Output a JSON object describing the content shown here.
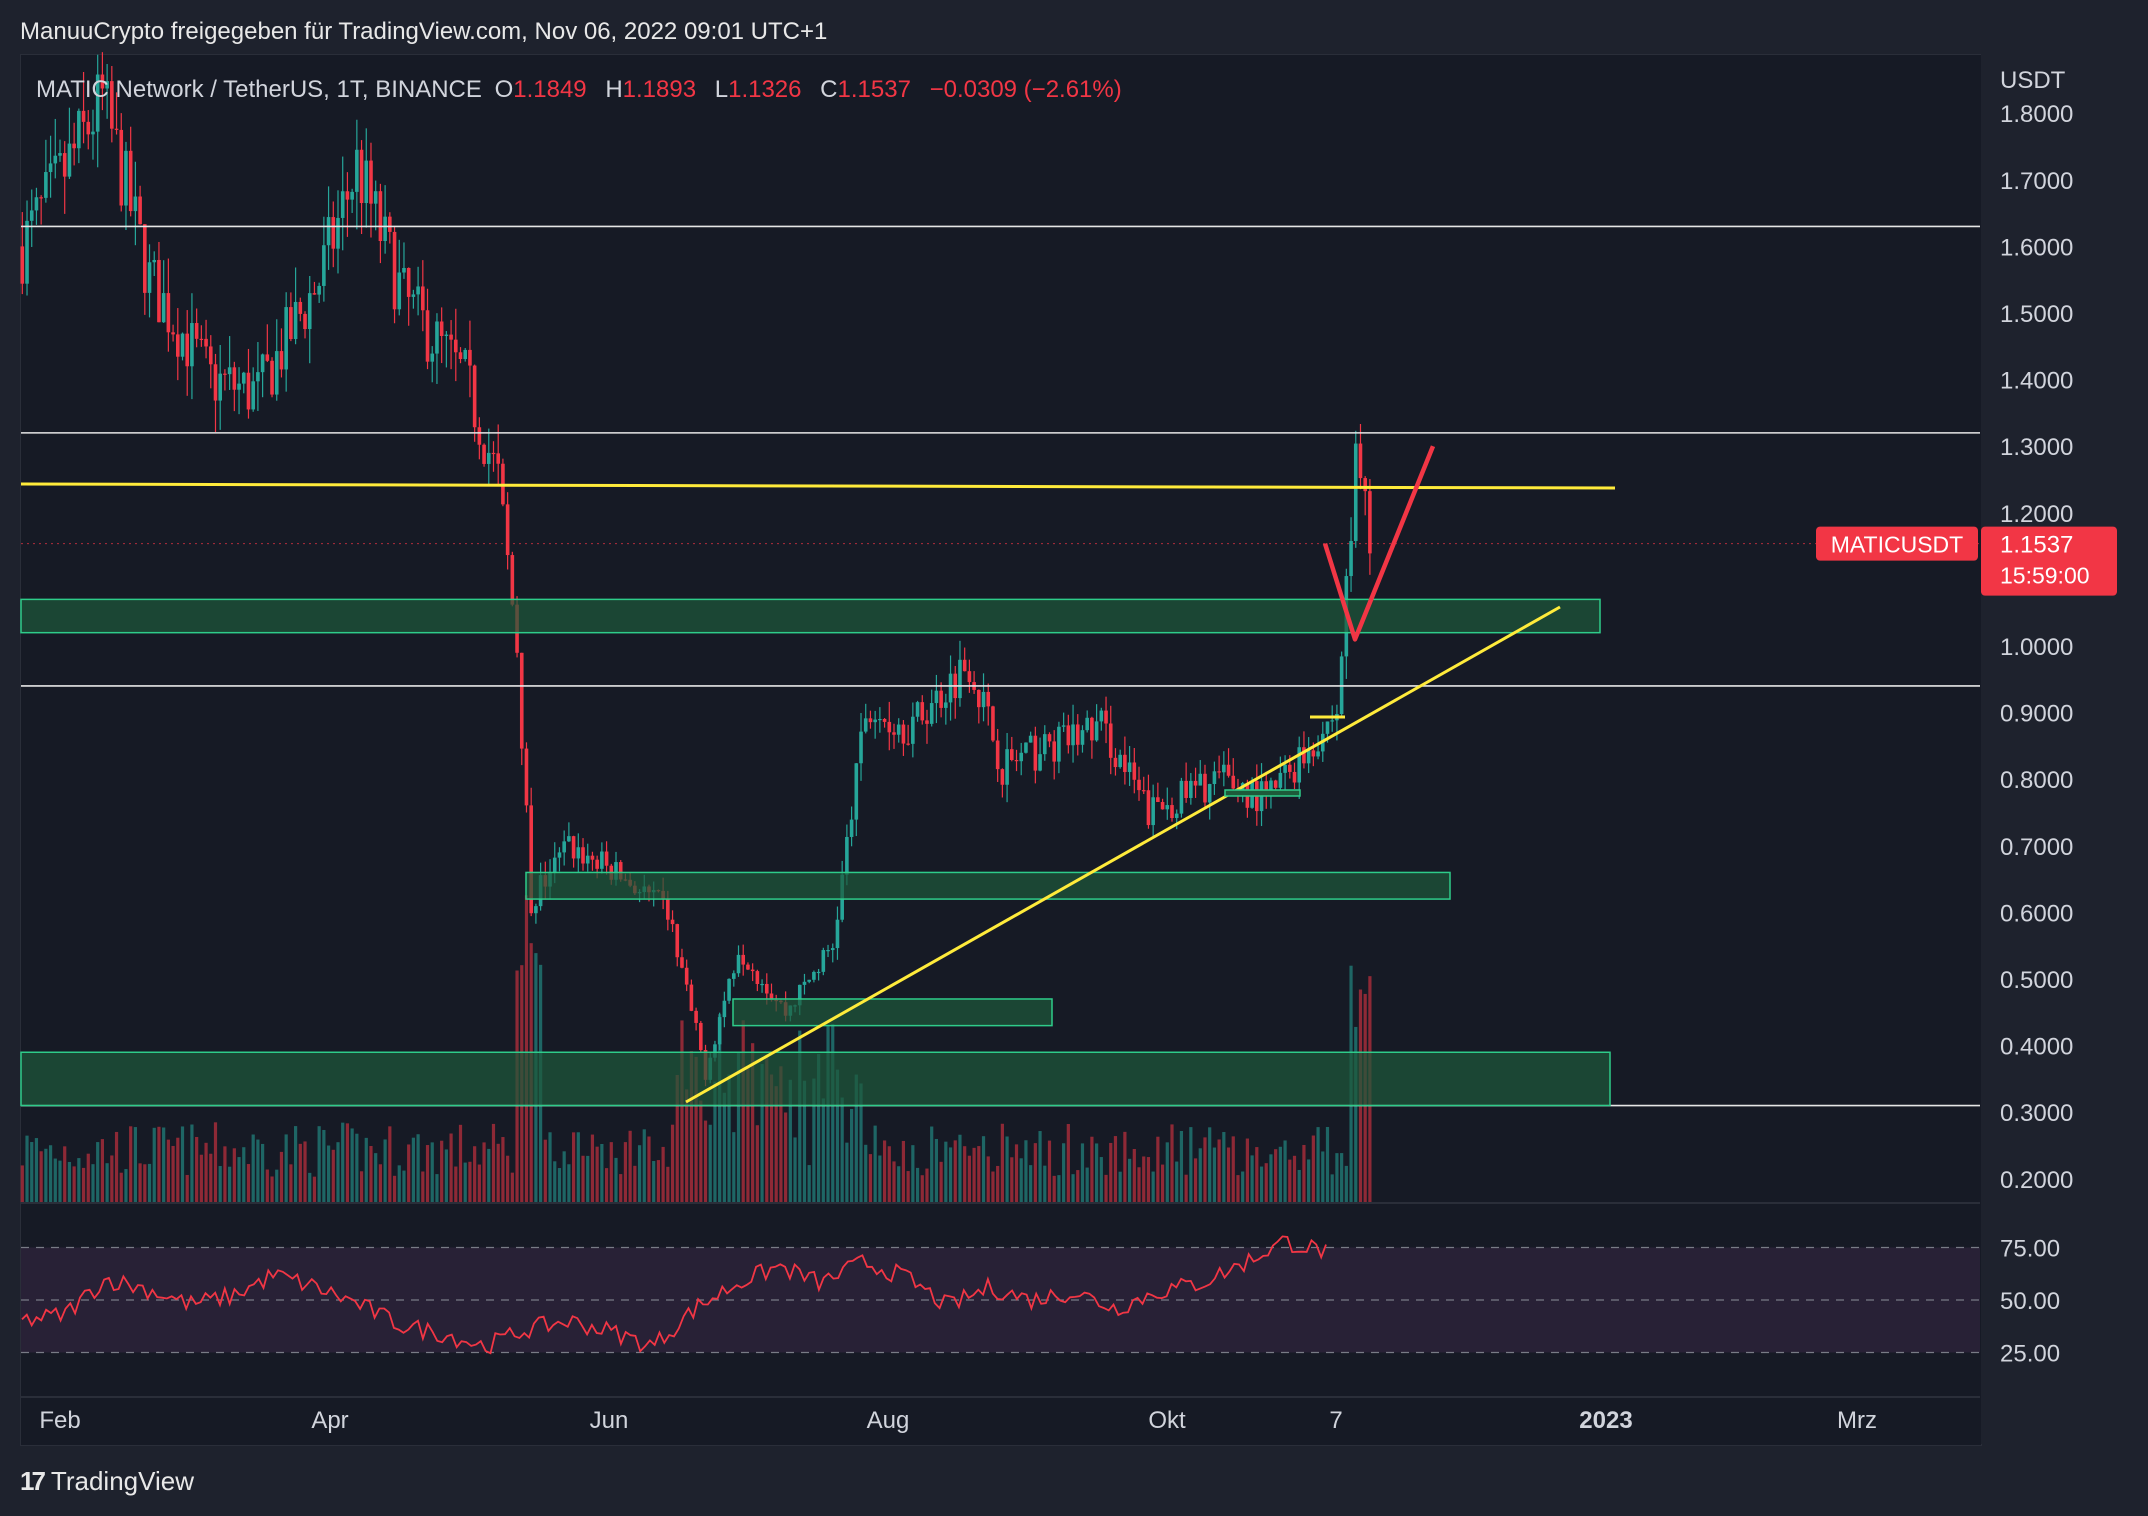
{
  "header": {
    "publisher": "ManuuCrypto freigegeben für TradingView.com, Nov 06, 2022 09:01 UTC+1"
  },
  "symbol": {
    "name": "MATIC Network / TetherUS, 1T, BINANCE",
    "o_label": "O",
    "o": "1.1849",
    "h_label": "H",
    "h": "1.1893",
    "l_label": "L",
    "l": "1.1326",
    "c_label": "C",
    "c": "1.1537",
    "change": "−0.0309 (−2.61%)"
  },
  "price_axis": {
    "currency": "USDT",
    "ticks": [
      "1.8000",
      "1.7000",
      "1.6000",
      "1.5000",
      "1.4000",
      "1.3000",
      "1.2000",
      "1.0000",
      "0.9000",
      "0.8000",
      "0.7000",
      "0.6000",
      "0.5000",
      "0.4000",
      "0.3000",
      "0.2000"
    ],
    "tick_values": [
      1.8,
      1.7,
      1.6,
      1.5,
      1.4,
      1.3,
      1.2,
      1.0,
      0.9,
      0.8,
      0.7,
      0.6,
      0.5,
      0.4,
      0.3,
      0.2
    ],
    "label_value": 1.1537,
    "symbol_label": "MATICUSDT",
    "last_price": "1.1537",
    "countdown": "15:59:00"
  },
  "rsi_axis": {
    "ticks": [
      "75.00",
      "50.00",
      "25.00"
    ],
    "tick_values": [
      75,
      50,
      25
    ]
  },
  "time_axis": {
    "labels": [
      "Feb",
      "Apr",
      "Jun",
      "Aug",
      "Okt",
      "7",
      "2023",
      "Mrz"
    ],
    "bold_label": "2023"
  },
  "footer": {
    "brand": "TradingView"
  },
  "colors": {
    "up": "#26a69a",
    "down": "#f23645",
    "zone": "#1e5a3a",
    "zone_border": "#2ecc8a",
    "yellow": "#ffeb3b",
    "white_line": "#e6e6e6",
    "bg": "#161a25"
  },
  "chart_data": {
    "type": "candlestick",
    "symbol": "MATICUSDT",
    "interval": "1D",
    "ylim": [
      0.2,
      1.8
    ],
    "price_path": [
      {
        "t": "Jan 24",
        "p": 1.6
      },
      {
        "t": "Feb 1",
        "p": 1.7
      },
      {
        "t": "Feb 10",
        "p": 1.82
      },
      {
        "t": "Feb 20",
        "p": 1.55
      },
      {
        "t": "Mar 5",
        "p": 1.4
      },
      {
        "t": "Mar 15",
        "p": 1.38
      },
      {
        "t": "Mar 28",
        "p": 1.55
      },
      {
        "t": "Apr 5",
        "p": 1.72
      },
      {
        "t": "Apr 15",
        "p": 1.52
      },
      {
        "t": "Apr 28",
        "p": 1.4
      },
      {
        "t": "May 5",
        "p": 1.25
      },
      {
        "t": "May 9",
        "p": 1.0
      },
      {
        "t": "May 12",
        "p": 0.62
      },
      {
        "t": "May 20",
        "p": 0.7
      },
      {
        "t": "Jun 1",
        "p": 0.65
      },
      {
        "t": "Jun 10",
        "p": 0.6
      },
      {
        "t": "Jun 18",
        "p": 0.36
      },
      {
        "t": "Jun 25",
        "p": 0.55
      },
      {
        "t": "Jul 5",
        "p": 0.45
      },
      {
        "t": "Jul 15",
        "p": 0.55
      },
      {
        "t": "Jul 22",
        "p": 0.9
      },
      {
        "t": "Aug 1",
        "p": 0.88
      },
      {
        "t": "Aug 13",
        "p": 0.98
      },
      {
        "t": "Aug 20",
        "p": 0.82
      },
      {
        "t": "Sep 10",
        "p": 0.88
      },
      {
        "t": "Sep 20",
        "p": 0.75
      },
      {
        "t": "Oct 5",
        "p": 0.8
      },
      {
        "t": "Oct 15",
        "p": 0.77
      },
      {
        "t": "Oct 30",
        "p": 0.9
      },
      {
        "t": "Nov 3",
        "p": 1.27
      },
      {
        "t": "Nov 6",
        "p": 1.1537
      }
    ],
    "rsi_path": [
      40,
      43,
      60,
      55,
      48,
      52,
      62,
      56,
      48,
      38,
      34,
      28,
      36,
      40,
      35,
      28,
      46,
      58,
      66,
      58,
      68,
      61,
      47,
      56,
      50,
      54,
      46,
      54,
      58,
      67,
      78,
      73
    ],
    "levels": [
      1.63,
      1.32,
      0.94,
      0.31
    ],
    "zones": [
      [
        1.02,
        1.07
      ],
      [
        0.62,
        0.66
      ],
      [
        0.43,
        0.47
      ],
      [
        0.31,
        0.39
      ]
    ],
    "projection": [
      1.1537,
      1.01,
      1.3
    ]
  }
}
